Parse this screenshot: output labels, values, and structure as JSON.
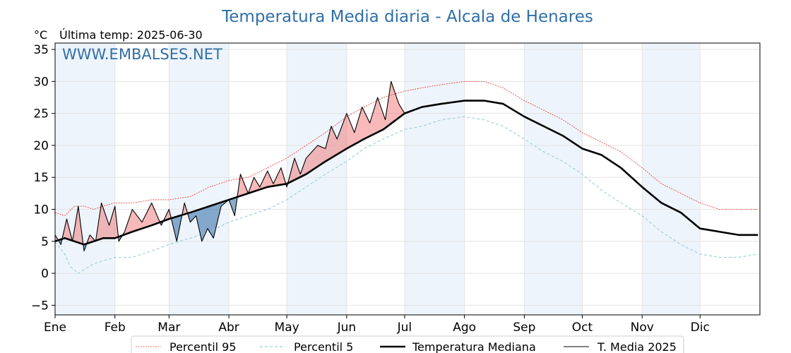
{
  "chart_data": {
    "type": "line",
    "title": "Temperatura Media diaria - Alcala de Henares",
    "unit_label": "°C",
    "last_temp_label": "Última temp: 2025-06-30",
    "watermark": "WWW.EMBALSES.NET",
    "ylim": [
      -6.5,
      36
    ],
    "yticks": [
      -5,
      0,
      5,
      10,
      15,
      20,
      25,
      30,
      35
    ],
    "months": [
      "Ene",
      "Feb",
      "Mar",
      "Abr",
      "May",
      "Jun",
      "Jul",
      "Ago",
      "Sep",
      "Oct",
      "Nov",
      "Dic"
    ],
    "month_start_days": [
      0,
      31,
      59,
      90,
      120,
      151,
      181,
      212,
      243,
      273,
      304,
      334
    ],
    "x_max_day": 365,
    "grid": true,
    "legend_placement": "bottom-center",
    "colors": {
      "p95": "#e8302a",
      "p5": "#9fd0df",
      "median": "#000000",
      "current": "#000000",
      "above": "#f08080",
      "below": "#4a7fb0",
      "shade": "#eef4fb"
    },
    "series": [
      {
        "name": "Percentil 95",
        "x": [
          0,
          5,
          10,
          15,
          20,
          25,
          31,
          40,
          50,
          59,
          70,
          80,
          90,
          100,
          110,
          120,
          130,
          140,
          151,
          160,
          170,
          181,
          190,
          200,
          212,
          222,
          232,
          243,
          253,
          263,
          273,
          283,
          293,
          304,
          314,
          324,
          334,
          344,
          354,
          364
        ],
        "values": [
          9.5,
          9.0,
          10.5,
          10.5,
          10.0,
          10.5,
          11.0,
          11.0,
          11.5,
          11.5,
          12.0,
          13.5,
          14.5,
          15.0,
          16.5,
          18.0,
          20.0,
          22.0,
          24.5,
          26.0,
          27.5,
          28.5,
          29.0,
          29.5,
          30.0,
          30.0,
          29.0,
          27.0,
          25.5,
          24.0,
          22.0,
          20.5,
          19.0,
          16.5,
          14.0,
          12.5,
          11.0,
          10.0,
          10.0,
          10.0
        ]
      },
      {
        "name": "Percentil 5",
        "x": [
          0,
          5,
          8,
          12,
          20,
          31,
          40,
          50,
          59,
          70,
          80,
          90,
          100,
          110,
          120,
          130,
          140,
          151,
          160,
          170,
          181,
          190,
          200,
          212,
          222,
          232,
          243,
          253,
          263,
          273,
          283,
          293,
          304,
          314,
          324,
          334,
          344,
          354,
          364
        ],
        "values": [
          5.0,
          3.0,
          1.0,
          0.0,
          1.5,
          2.5,
          2.5,
          3.5,
          4.5,
          5.5,
          6.5,
          8.0,
          9.0,
          10.0,
          11.5,
          13.5,
          15.5,
          17.5,
          19.5,
          21.0,
          22.5,
          23.0,
          24.0,
          24.5,
          24.0,
          23.0,
          21.0,
          19.0,
          17.5,
          15.5,
          13.0,
          11.0,
          9.0,
          6.5,
          4.5,
          3.0,
          2.5,
          2.5,
          3.0
        ]
      },
      {
        "name": "Temperatura Mediana",
        "x": [
          0,
          5,
          10,
          15,
          20,
          25,
          31,
          40,
          50,
          59,
          70,
          80,
          90,
          100,
          110,
          120,
          130,
          140,
          151,
          160,
          170,
          181,
          190,
          200,
          212,
          222,
          232,
          243,
          253,
          263,
          273,
          283,
          293,
          304,
          314,
          324,
          334,
          344,
          354,
          364
        ],
        "values": [
          5.0,
          5.5,
          5.0,
          4.5,
          5.0,
          5.5,
          5.5,
          6.5,
          7.5,
          8.5,
          9.5,
          10.5,
          11.5,
          12.5,
          13.5,
          14.0,
          15.5,
          17.5,
          19.5,
          21.0,
          22.5,
          25.0,
          26.0,
          26.5,
          27.0,
          27.0,
          26.5,
          24.5,
          23.0,
          21.5,
          19.5,
          18.5,
          16.5,
          13.5,
          11.0,
          9.5,
          7.0,
          6.5,
          6.0,
          6.0
        ]
      },
      {
        "name": "T. Media 2025",
        "x": [
          0,
          3,
          6,
          9,
          12,
          15,
          18,
          21,
          24,
          28,
          31,
          33,
          36,
          40,
          45,
          50,
          55,
          59,
          63,
          67,
          70,
          73,
          76,
          79,
          82,
          86,
          90,
          93,
          96,
          100,
          103,
          106,
          110,
          113,
          117,
          120,
          124,
          127,
          130,
          133,
          136,
          140,
          143,
          146,
          151,
          155,
          159,
          163,
          167,
          171,
          174,
          178,
          181
        ],
        "values": [
          6.0,
          4.5,
          8.5,
          5.0,
          10.5,
          3.5,
          6.0,
          5.0,
          11.0,
          7.5,
          10.5,
          5.0,
          6.5,
          10.0,
          8.0,
          11.0,
          7.5,
          10.0,
          5.0,
          11.0,
          8.0,
          9.0,
          5.0,
          7.0,
          5.5,
          10.5,
          11.5,
          9.0,
          15.5,
          12.5,
          15.0,
          13.5,
          16.0,
          14.0,
          16.5,
          13.5,
          18.0,
          15.5,
          18.0,
          19.0,
          20.0,
          19.5,
          23.0,
          21.0,
          25.0,
          22.0,
          26.0,
          23.5,
          27.5,
          24.0,
          30.0,
          26.5,
          25.0
        ]
      }
    ]
  }
}
